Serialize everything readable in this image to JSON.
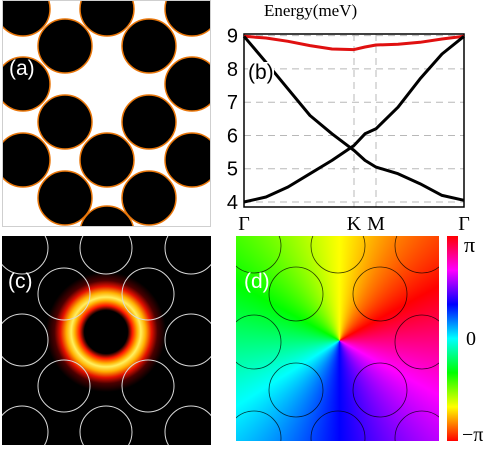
{
  "panels": {
    "a": {
      "label": "(a)"
    },
    "b": {
      "label": "(b)"
    },
    "c": {
      "label": "(c)"
    },
    "d": {
      "label": "(d)"
    }
  },
  "colors": {
    "disk_fill": "#000000",
    "disk_edge": "#e8760a",
    "red_band": "#e01010",
    "black_band": "#000000",
    "grid": "#b8b8b8"
  },
  "chart_data": {
    "type": "line",
    "title": "Energy(meV)",
    "ylabel": "Energy(meV)",
    "ylim": [
      3.85,
      9.05
    ],
    "yticks": [
      "4",
      "5",
      "6",
      "7",
      "8",
      "9"
    ],
    "xticks": [
      {
        "label": "Γ",
        "pos": 0
      },
      {
        "label": "K",
        "pos": 0.5
      },
      {
        "label": "M",
        "pos": 0.6
      },
      {
        "label": "Γ",
        "pos": 1
      }
    ],
    "grid": true,
    "series": [
      {
        "color": "#e01010",
        "x": [
          0,
          0.1,
          0.2,
          0.3,
          0.4,
          0.5,
          0.55,
          0.6,
          0.7,
          0.8,
          0.9,
          1.0
        ],
        "y": [
          8.98,
          8.93,
          8.83,
          8.7,
          8.6,
          8.58,
          8.66,
          8.72,
          8.74,
          8.8,
          8.9,
          8.98
        ]
      },
      {
        "color": "#000000",
        "x": [
          0,
          0.1,
          0.2,
          0.3,
          0.4,
          0.5,
          0.55,
          0.6,
          0.7,
          0.8,
          0.9,
          1.0
        ],
        "y": [
          8.98,
          8.2,
          7.4,
          6.6,
          6.05,
          5.55,
          5.25,
          5.05,
          4.85,
          4.55,
          4.2,
          4.05
        ]
      },
      {
        "color": "#000000",
        "x": [
          0,
          0.1,
          0.2,
          0.3,
          0.4,
          0.5,
          0.55,
          0.6,
          0.7,
          0.8,
          0.9,
          1.0
        ],
        "y": [
          4.0,
          4.15,
          4.45,
          4.85,
          5.25,
          5.7,
          6.05,
          6.2,
          6.85,
          7.7,
          8.45,
          8.98
        ]
      }
    ]
  },
  "phase_colorbar": {
    "top_label": "π",
    "mid_label": "0",
    "bottom_label": "−π",
    "stops": [
      "#ff0000",
      "#ff00ff",
      "#0000ff",
      "#00ffff",
      "#00ff00",
      "#ffff00",
      "#ff0000"
    ]
  }
}
